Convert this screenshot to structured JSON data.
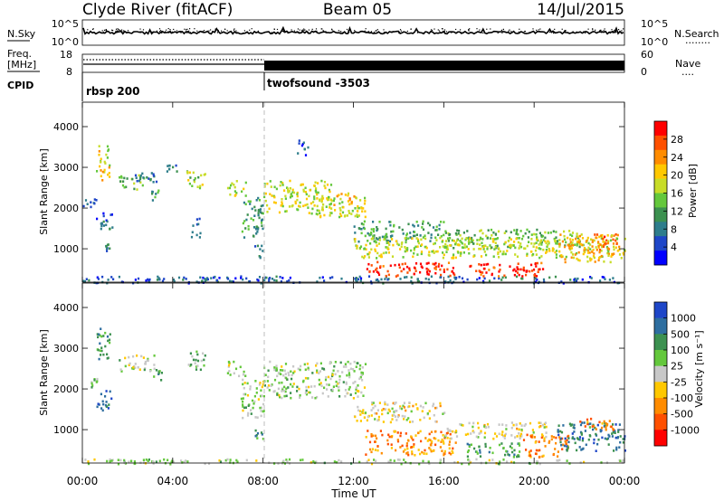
{
  "header": {
    "station": "Clyde River (fitACF)",
    "beam": "Beam 05",
    "date": "14/Jul/2015"
  },
  "panels": {
    "nsky": {
      "label": "N.Sky",
      "left_ticks": [
        "10^5",
        "10^0"
      ],
      "right_ticks": [
        "10^5",
        "10^0"
      ],
      "right_label": "N.Search",
      "right_legend": "........"
    },
    "freq": {
      "label_line1": "Freq.",
      "label_line2": "[MHz]",
      "left_ticks": [
        "18",
        "8"
      ],
      "right_ticks": [
        "60",
        "0"
      ],
      "right_label": "Nave",
      "right_legend": "....",
      "cpid_label": "CPID",
      "cpid_segments": [
        {
          "start_hour": 0,
          "name": "rbsp 200"
        },
        {
          "start_hour": 8,
          "name": "twofsound -3503"
        }
      ]
    }
  },
  "chart_data": [
    {
      "type": "heatmap",
      "parameter": "Power",
      "ylabel": "Slant Range [km]",
      "ylim": [
        180,
        4600
      ],
      "yticks": [
        "1000",
        "2000",
        "3000",
        "4000"
      ],
      "xlim_hours": [
        0,
        24
      ],
      "colorbar": {
        "label": "Power [dB]",
        "ticks": [
          "4",
          "8",
          "12",
          "16",
          "20",
          "24",
          "28"
        ],
        "range": [
          0,
          32
        ],
        "colors": [
          "#0000ff",
          "#1e46c8",
          "#2e7d8c",
          "#3c9150",
          "#64c83c",
          "#c8dc28",
          "#ffc800",
          "#ff8c00",
          "#ff5000",
          "#ff0000"
        ]
      },
      "scatter_regions": [
        {
          "x": [
            0.0,
            24.0
          ],
          "y": [
            180,
            350
          ],
          "level": 0.2
        },
        {
          "x": [
            0.0,
            0.7
          ],
          "y": [
            2050,
            2300
          ],
          "level": 0.15
        },
        {
          "x": [
            0.6,
            1.3
          ],
          "y": [
            1500,
            2000
          ],
          "level": 0.2
        },
        {
          "x": [
            0.6,
            1.2
          ],
          "y": [
            2700,
            3550
          ],
          "level": 0.6
        },
        {
          "x": [
            1.6,
            2.7
          ],
          "y": [
            2450,
            2850
          ],
          "level": 0.45
        },
        {
          "x": [
            2.3,
            3.3
          ],
          "y": [
            2650,
            3000
          ],
          "level": 0.25
        },
        {
          "x": [
            1.0,
            1.3
          ],
          "y": [
            700,
            1200
          ],
          "level": 0.3
        },
        {
          "x": [
            3.0,
            3.5
          ],
          "y": [
            2200,
            2500
          ],
          "level": 0.3
        },
        {
          "x": [
            3.6,
            4.2
          ],
          "y": [
            2800,
            3100
          ],
          "level": 0.3
        },
        {
          "x": [
            4.6,
            5.4
          ],
          "y": [
            2500,
            3000
          ],
          "level": 0.5
        },
        {
          "x": [
            4.8,
            5.2
          ],
          "y": [
            1300,
            1800
          ],
          "level": 0.2
        },
        {
          "x": [
            6.4,
            7.2
          ],
          "y": [
            2300,
            2700
          ],
          "level": 0.55
        },
        {
          "x": [
            7.0,
            8.0
          ],
          "y": [
            1300,
            2300
          ],
          "level": 0.35
        },
        {
          "x": [
            7.6,
            8.0
          ],
          "y": [
            800,
            1100
          ],
          "level": 0.25
        },
        {
          "x": [
            8.0,
            11.0
          ],
          "y": [
            1900,
            2700
          ],
          "level": 0.55
        },
        {
          "x": [
            10.0,
            12.5
          ],
          "y": [
            1800,
            2300
          ],
          "level": 0.55
        },
        {
          "x": [
            11.0,
            12.0
          ],
          "y": [
            2100,
            2400
          ],
          "level": 0.7
        },
        {
          "x": [
            9.5,
            10.0
          ],
          "y": [
            3300,
            3700
          ],
          "level": 0.2
        },
        {
          "x": [
            12.0,
            16.0
          ],
          "y": [
            1200,
            1700
          ],
          "level": 0.35
        },
        {
          "x": [
            16.0,
            22.0
          ],
          "y": [
            1000,
            1500
          ],
          "level": 0.45
        },
        {
          "x": [
            12.0,
            24.0
          ],
          "y": [
            800,
            1300
          ],
          "level": 0.55
        },
        {
          "x": [
            12.5,
            16.5
          ],
          "y": [
            350,
            700
          ],
          "level": 0.92
        },
        {
          "x": [
            17.0,
            20.5
          ],
          "y": [
            350,
            700
          ],
          "level": 0.92
        },
        {
          "x": [
            21.0,
            23.5
          ],
          "y": [
            700,
            1400
          ],
          "level": 0.65
        },
        {
          "x": [
            22.5,
            23.8
          ],
          "y": [
            1000,
            1400
          ],
          "level": 0.8
        }
      ]
    },
    {
      "type": "heatmap",
      "parameter": "Velocity",
      "ylabel": "Slant Range [km]",
      "ylim": [
        180,
        4600
      ],
      "yticks": [
        "1000",
        "2000",
        "3000",
        "4000"
      ],
      "xlim_hours": [
        0,
        24
      ],
      "xticks": [
        "00:00",
        "04:00",
        "08:00",
        "12:00",
        "16:00",
        "20:00",
        "00:00"
      ],
      "xlabel": "Time UT",
      "colorbar": {
        "label": "Velocity [m s⁻¹]",
        "ticks": [
          "1000",
          "500",
          "100",
          "25",
          "-25",
          "-100",
          "-500",
          "-1000"
        ],
        "colors": [
          "#1e46c8",
          "#2e6ea0",
          "#3c9150",
          "#64c83c",
          "#c8c8c8",
          "#ffc800",
          "#ff8c00",
          "#ff5000",
          "#ff0000"
        ]
      },
      "scatter_regions": [
        {
          "x": [
            0.0,
            24.0
          ],
          "y": [
            180,
            300
          ],
          "level": 0.45
        },
        {
          "x": [
            0.0,
            0.7
          ],
          "y": [
            2050,
            2300
          ],
          "level": 0.45
        },
        {
          "x": [
            0.6,
            1.3
          ],
          "y": [
            1500,
            2000
          ],
          "level": 0.1
        },
        {
          "x": [
            0.6,
            1.2
          ],
          "y": [
            2700,
            3550
          ],
          "level": 0.3
        },
        {
          "x": [
            1.6,
            3.2
          ],
          "y": [
            2450,
            2850
          ],
          "level": 0.45
        },
        {
          "x": [
            3.0,
            3.5
          ],
          "y": [
            2200,
            2500
          ],
          "level": 0.3
        },
        {
          "x": [
            4.6,
            5.4
          ],
          "y": [
            2500,
            3000
          ],
          "level": 0.35
        },
        {
          "x": [
            6.4,
            7.2
          ],
          "y": [
            2300,
            2700
          ],
          "level": 0.45
        },
        {
          "x": [
            7.0,
            8.0
          ],
          "y": [
            1300,
            2300
          ],
          "level": 0.45
        },
        {
          "x": [
            7.6,
            8.0
          ],
          "y": [
            800,
            1100
          ],
          "level": 0.25
        },
        {
          "x": [
            8.0,
            12.5
          ],
          "y": [
            1800,
            2700
          ],
          "level": 0.45
        },
        {
          "x": [
            12.0,
            16.0
          ],
          "y": [
            1200,
            1700
          ],
          "level": 0.55
        },
        {
          "x": [
            12.5,
            16.5
          ],
          "y": [
            400,
            1000
          ],
          "level": 0.72
        },
        {
          "x": [
            16.0,
            20.5
          ],
          "y": [
            800,
            1200
          ],
          "level": 0.55
        },
        {
          "x": [
            17.0,
            19.5
          ],
          "y": [
            350,
            700
          ],
          "level": 0.3
        },
        {
          "x": [
            19.5,
            21.5
          ],
          "y": [
            350,
            900
          ],
          "level": 0.75
        },
        {
          "x": [
            21.0,
            24.0
          ],
          "y": [
            500,
            1200
          ],
          "level": 0.2
        },
        {
          "x": [
            22.0,
            23.5
          ],
          "y": [
            1000,
            1300
          ],
          "level": 0.75
        }
      ]
    }
  ]
}
